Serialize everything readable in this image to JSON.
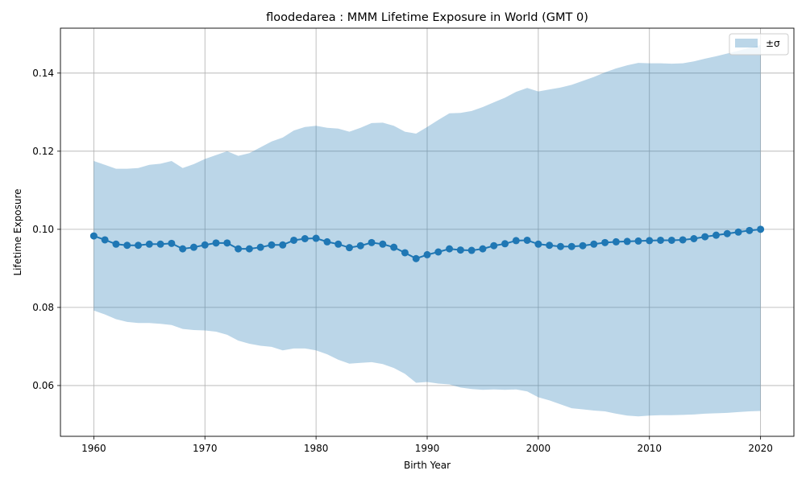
{
  "chart_data": {
    "type": "line",
    "title": "floodedarea : MMM Lifetime Exposure in World (GMT 0)",
    "xlabel": "Birth Year",
    "ylabel": "Lifetime Exposure",
    "xlim": [
      1957,
      2023
    ],
    "ylim": [
      0.047,
      0.1515
    ],
    "x_ticks": [
      1960,
      1970,
      1980,
      1990,
      2000,
      2010,
      2020
    ],
    "y_ticks": [
      0.06,
      0.08,
      0.1,
      0.12,
      0.14
    ],
    "grid": true,
    "legend_position": "top-right",
    "colors": {
      "line": "#1f77b4",
      "band": "#1f77b4"
    },
    "band_label": "±σ",
    "x": [
      1960,
      1961,
      1962,
      1963,
      1964,
      1965,
      1966,
      1967,
      1968,
      1969,
      1970,
      1971,
      1972,
      1973,
      1974,
      1975,
      1976,
      1977,
      1978,
      1979,
      1980,
      1981,
      1982,
      1983,
      1984,
      1985,
      1986,
      1987,
      1988,
      1989,
      1990,
      1991,
      1992,
      1993,
      1994,
      1995,
      1996,
      1997,
      1998,
      1999,
      2000,
      2001,
      2002,
      2003,
      2004,
      2005,
      2006,
      2007,
      2008,
      2009,
      2010,
      2011,
      2012,
      2013,
      2014,
      2015,
      2016,
      2017,
      2018,
      2019,
      2020
    ],
    "mean": [
      0.0983,
      0.0973,
      0.0962,
      0.0959,
      0.0959,
      0.0962,
      0.0962,
      0.0964,
      0.095,
      0.0954,
      0.096,
      0.0965,
      0.0965,
      0.095,
      0.095,
      0.0954,
      0.096,
      0.096,
      0.0972,
      0.0976,
      0.0977,
      0.0968,
      0.0962,
      0.0953,
      0.0958,
      0.0966,
      0.0962,
      0.0954,
      0.094,
      0.0925,
      0.0935,
      0.0942,
      0.095,
      0.0947,
      0.0946,
      0.095,
      0.0958,
      0.0963,
      0.0971,
      0.0972,
      0.0962,
      0.0959,
      0.0956,
      0.0956,
      0.0958,
      0.0962,
      0.0966,
      0.0968,
      0.0969,
      0.097,
      0.0971,
      0.0972,
      0.0972,
      0.0973,
      0.0976,
      0.0981,
      0.0985,
      0.0989,
      0.0993,
      0.0997,
      0.1
    ],
    "upper": [
      0.1175,
      0.1165,
      0.1155,
      0.1155,
      0.1157,
      0.1165,
      0.1168,
      0.1175,
      0.1157,
      0.1167,
      0.118,
      0.119,
      0.12,
      0.1188,
      0.1195,
      0.121,
      0.1225,
      0.1235,
      0.1253,
      0.1262,
      0.1265,
      0.126,
      0.1258,
      0.125,
      0.126,
      0.1272,
      0.1273,
      0.1265,
      0.125,
      0.1245,
      0.1262,
      0.128,
      0.1297,
      0.1298,
      0.1303,
      0.1313,
      0.1325,
      0.1337,
      0.1352,
      0.1362,
      0.1353,
      0.1358,
      0.1363,
      0.137,
      0.138,
      0.139,
      0.1402,
      0.1412,
      0.142,
      0.1426,
      0.1425,
      0.1425,
      0.1424,
      0.1425,
      0.143,
      0.1437,
      0.1443,
      0.145,
      0.1457,
      0.1465,
      0.1472
    ],
    "lower": [
      0.0792,
      0.0782,
      0.077,
      0.0763,
      0.076,
      0.076,
      0.0758,
      0.0755,
      0.0745,
      0.0742,
      0.0741,
      0.0738,
      0.073,
      0.0715,
      0.0707,
      0.0702,
      0.0699,
      0.069,
      0.0695,
      0.0695,
      0.069,
      0.068,
      0.0666,
      0.0656,
      0.0658,
      0.066,
      0.0655,
      0.0645,
      0.063,
      0.0607,
      0.0609,
      0.0605,
      0.0603,
      0.0595,
      0.0591,
      0.0589,
      0.059,
      0.0589,
      0.059,
      0.0585,
      0.057,
      0.0562,
      0.0552,
      0.0542,
      0.0539,
      0.0536,
      0.0534,
      0.0528,
      0.0523,
      0.0521,
      0.0523,
      0.0524,
      0.0524,
      0.0525,
      0.0526,
      0.0528,
      0.0529,
      0.053,
      0.0532,
      0.0534,
      0.0535
    ]
  }
}
